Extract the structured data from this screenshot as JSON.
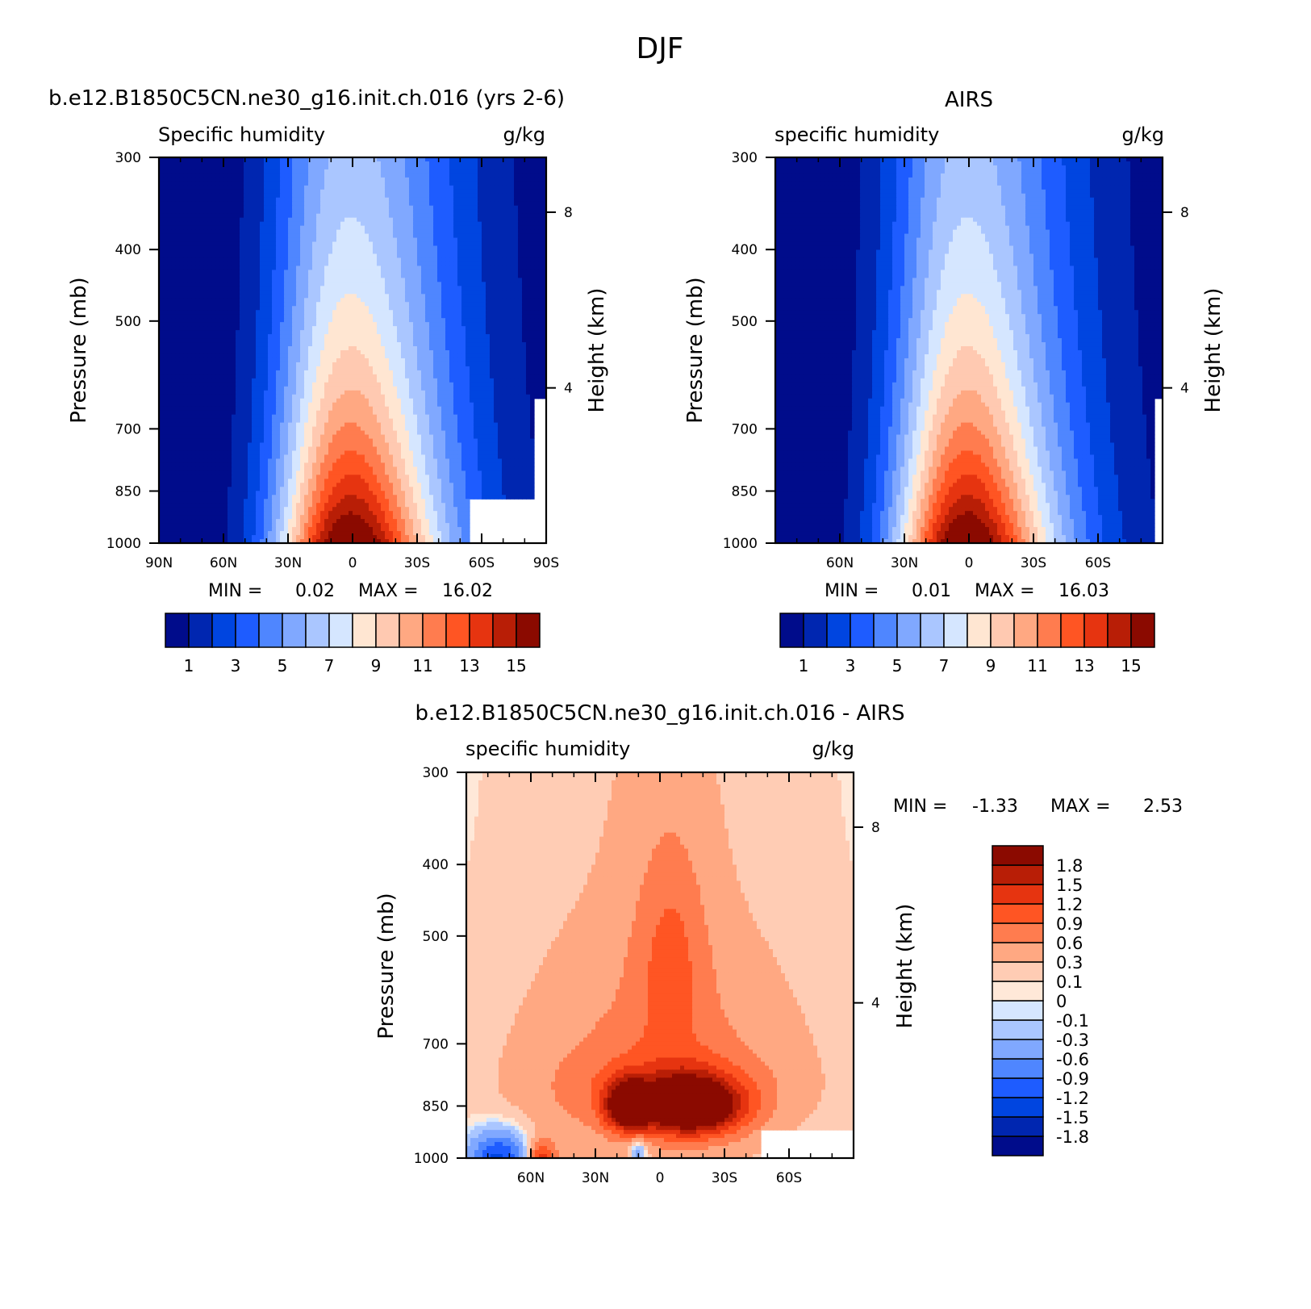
{
  "figure_title": "DJF",
  "colors": {
    "blue_red_16": [
      "#000c8b",
      "#0026b0",
      "#0045e0",
      "#1e5cff",
      "#4f86ff",
      "#80a8ff",
      "#aac6ff",
      "#d5e6ff",
      "#ffe6d2",
      "#ffc9b1",
      "#ffa882",
      "#ff7c4f",
      "#ff5523",
      "#e63410",
      "#b81e06",
      "#8b0a00"
    ],
    "diff_16": [
      "#000c8b",
      "#0026b0",
      "#0045e0",
      "#1e5cff",
      "#4f86ff",
      "#80a8ff",
      "#aac6ff",
      "#d5e6ff",
      "#ffe8d8",
      "#ffccb4",
      "#ffa882",
      "#ff7c4f",
      "#ff5523",
      "#e63410",
      "#b81e06",
      "#8b0a00"
    ]
  },
  "chart_data": [
    {
      "type": "heatmap",
      "title": "b.e12.B1850C5CN.ne30_g16.init.ch.016 (yrs 2-6)",
      "left_string": "Specific humidity",
      "right_string": "g/kg",
      "xlabel": "",
      "ylabel": "Pressure (mb)",
      "y2label": "Height (km)",
      "xticks": [
        "90N",
        "60N",
        "30N",
        "0",
        "30S",
        "60S",
        "90S"
      ],
      "yticks": [
        "300",
        "400",
        "500",
        "700",
        "850",
        "1000"
      ],
      "y2ticks": [
        "8",
        "4"
      ],
      "xlim": [
        90,
        -90
      ],
      "ylim": [
        1000,
        300
      ],
      "min_label": "MIN =",
      "min_value": "0.02",
      "max_label": "MAX =",
      "max_value": "16.02",
      "colorbar_labels": [
        "1",
        "3",
        "5",
        "7",
        "9",
        "11",
        "13",
        "15"
      ],
      "contour_levels": [
        1,
        2,
        3,
        4,
        5,
        6,
        7,
        8,
        9,
        10,
        11,
        12,
        13,
        14,
        15
      ],
      "peak_lat": 0,
      "peak_value": 16.02,
      "missing_south_polar": true
    },
    {
      "type": "heatmap",
      "title": "AIRS",
      "left_string": "specific humidity",
      "right_string": "g/kg",
      "xlabel": "",
      "ylabel": "Pressure (mb)",
      "y2label": "Height (km)",
      "xticks": [
        "",
        "60N",
        "30N",
        "0",
        "30S",
        "60S",
        ""
      ],
      "yticks": [
        "300",
        "400",
        "500",
        "700",
        "850",
        "1000"
      ],
      "y2ticks": [
        "8",
        "4"
      ],
      "xlim": [
        90,
        -90
      ],
      "ylim": [
        1000,
        300
      ],
      "min_label": "MIN =",
      "min_value": "0.01",
      "max_label": "MAX =",
      "max_value": "16.03",
      "colorbar_labels": [
        "1",
        "3",
        "5",
        "7",
        "9",
        "11",
        "13",
        "15"
      ],
      "contour_levels": [
        1,
        2,
        3,
        4,
        5,
        6,
        7,
        8,
        9,
        10,
        11,
        12,
        13,
        14,
        15
      ],
      "peak_lat": 0,
      "peak_value": 16.03
    },
    {
      "type": "heatmap",
      "title": "b.e12.B1850C5CN.ne30_g16.init.ch.016 - AIRS",
      "left_string": "specific humidity",
      "right_string": "g/kg",
      "xlabel": "",
      "ylabel": "Pressure (mb)",
      "y2label": "Height (km)",
      "xticks": [
        "",
        "60N",
        "30N",
        "0",
        "30S",
        "60S",
        ""
      ],
      "yticks": [
        "300",
        "400",
        "500",
        "700",
        "850",
        "1000"
      ],
      "y2ticks": [
        "8",
        "4"
      ],
      "xlim": [
        90,
        -90
      ],
      "ylim": [
        1000,
        300
      ],
      "min_label": "MIN =",
      "min_value": "-1.33",
      "max_label": "MAX =",
      "max_value": "2.53",
      "colorbar_labels": [
        "1.8",
        "1.5",
        "1.2",
        "0.9",
        "0.6",
        "0.3",
        "0.1",
        "0",
        "-0.1",
        "-0.3",
        "-0.6",
        "-0.9",
        "-1.2",
        "-1.5",
        "-1.8"
      ],
      "contour_levels": [
        -1.8,
        -1.5,
        -1.2,
        -0.9,
        -0.6,
        -0.3,
        -0.1,
        0,
        0.1,
        0.3,
        0.6,
        0.9,
        1.2,
        1.5,
        1.8
      ],
      "maxima": [
        {
          "lat": -15,
          "p": 850,
          "value": 2.53
        },
        {
          "lat": 15,
          "p": 850,
          "value": 1.9
        }
      ]
    }
  ]
}
